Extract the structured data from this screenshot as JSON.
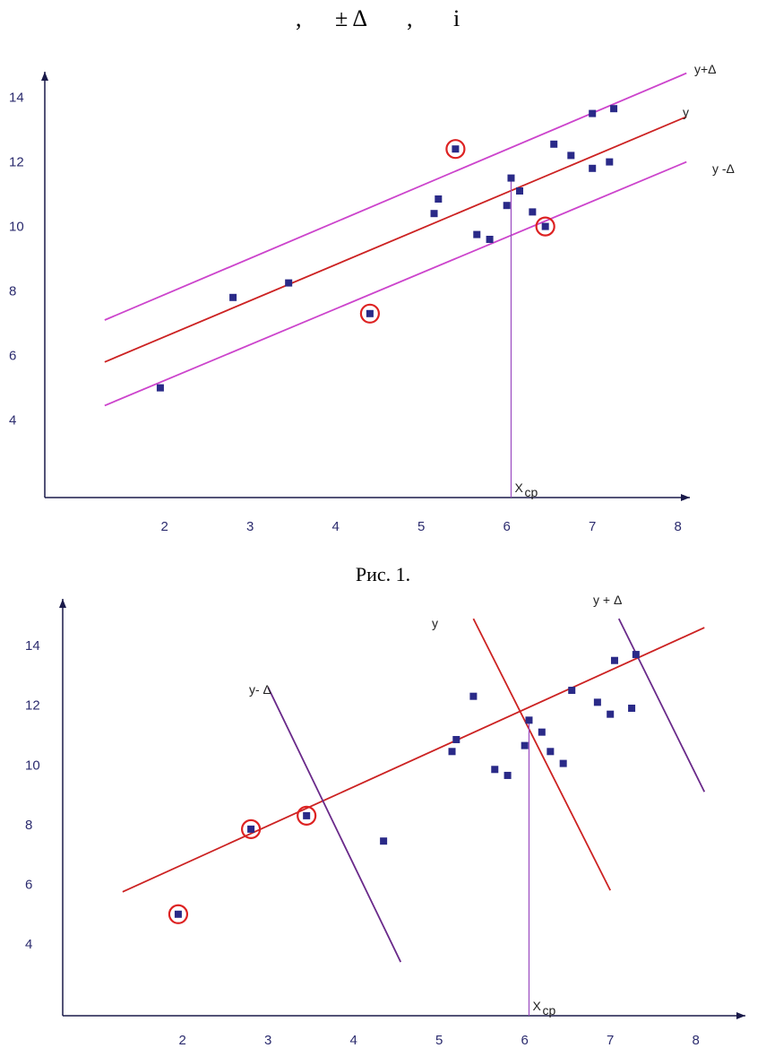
{
  "header": {
    "frag_comma": ",",
    "frag_pm_delta": "± Δ",
    "frag_comma2": ",",
    "frag_i": "і"
  },
  "caption": "Рис. 1.",
  "chart_data": [
    {
      "type": "scatter",
      "title": "",
      "x_ticks": [
        "2",
        "3",
        "4",
        "5",
        "6",
        "7",
        "8"
      ],
      "y_ticks": [
        "4",
        "6",
        "8",
        "10",
        "12",
        "14"
      ],
      "xlim": [
        0.6,
        8.2
      ],
      "ylim": [
        1.6,
        15.2
      ],
      "points": [
        {
          "x": 1.95,
          "y": 5.0
        },
        {
          "x": 2.8,
          "y": 7.8
        },
        {
          "x": 3.45,
          "y": 8.25
        },
        {
          "x": 4.4,
          "y": 7.3,
          "circled": true
        },
        {
          "x": 5.15,
          "y": 10.4
        },
        {
          "x": 5.2,
          "y": 10.85
        },
        {
          "x": 5.4,
          "y": 12.4,
          "circled": true
        },
        {
          "x": 5.65,
          "y": 9.75
        },
        {
          "x": 5.8,
          "y": 9.6
        },
        {
          "x": 6.0,
          "y": 10.65
        },
        {
          "x": 6.05,
          "y": 11.5
        },
        {
          "x": 6.15,
          "y": 11.1
        },
        {
          "x": 6.3,
          "y": 10.45
        },
        {
          "x": 6.45,
          "y": 10.0,
          "circled": true
        },
        {
          "x": 6.55,
          "y": 12.55
        },
        {
          "x": 6.75,
          "y": 12.2
        },
        {
          "x": 7.0,
          "y": 11.8
        },
        {
          "x": 7.0,
          "y": 13.5
        },
        {
          "x": 7.2,
          "y": 12.0
        },
        {
          "x": 7.25,
          "y": 13.65
        }
      ],
      "lines": [
        {
          "name": "y+Δ",
          "color": "#cc44cc",
          "x": [
            1.3,
            8.1
          ],
          "y": [
            7.1,
            14.75
          ]
        },
        {
          "name": "y",
          "color": "#cc2222",
          "x": [
            1.3,
            8.1
          ],
          "y": [
            5.8,
            13.4
          ]
        },
        {
          "name": "y -Δ",
          "color": "#cc44cc",
          "x": [
            1.3,
            8.1
          ],
          "y": [
            4.45,
            12.0
          ]
        }
      ],
      "x_mean": 6.05,
      "x_mean_label": "X",
      "x_mean_sub": "ср"
    },
    {
      "type": "scatter",
      "title": "",
      "x_ticks": [
        "2",
        "3",
        "4",
        "5",
        "6",
        "7",
        "8"
      ],
      "y_ticks": [
        "4",
        "6",
        "8",
        "10",
        "12",
        "14"
      ],
      "xlim": [
        0.6,
        8.2
      ],
      "ylim": [
        1.6,
        15.2
      ],
      "points": [
        {
          "x": 1.95,
          "y": 5.0,
          "circled": true
        },
        {
          "x": 2.8,
          "y": 7.85,
          "circled": true
        },
        {
          "x": 3.45,
          "y": 8.3,
          "circled": true
        },
        {
          "x": 4.35,
          "y": 7.45
        },
        {
          "x": 5.15,
          "y": 10.45
        },
        {
          "x": 5.2,
          "y": 10.85
        },
        {
          "x": 5.4,
          "y": 12.3
        },
        {
          "x": 5.65,
          "y": 9.85
        },
        {
          "x": 5.8,
          "y": 9.65
        },
        {
          "x": 6.0,
          "y": 10.65
        },
        {
          "x": 6.05,
          "y": 11.5
        },
        {
          "x": 6.2,
          "y": 11.1
        },
        {
          "x": 6.3,
          "y": 10.45
        },
        {
          "x": 6.45,
          "y": 10.05
        },
        {
          "x": 6.55,
          "y": 12.5
        },
        {
          "x": 6.85,
          "y": 12.1
        },
        {
          "x": 7.0,
          "y": 11.7
        },
        {
          "x": 7.05,
          "y": 13.5
        },
        {
          "x": 7.25,
          "y": 11.9
        },
        {
          "x": 7.3,
          "y": 13.7
        }
      ],
      "lines": [
        {
          "name": "",
          "color": "#cc2222",
          "x": [
            1.3,
            8.1
          ],
          "y": [
            5.75,
            14.6
          ]
        },
        {
          "name": "y",
          "color": "#cc2222",
          "x": [
            5.4,
            7.0
          ],
          "y": [
            14.9,
            5.8
          ]
        },
        {
          "name": "y- Δ",
          "color": "#6a2a8a",
          "x": [
            3.0,
            4.55
          ],
          "y": [
            12.6,
            3.4
          ]
        },
        {
          "name": "y + Δ",
          "color": "#6a2a8a",
          "x": [
            7.1,
            8.1
          ],
          "y": [
            14.9,
            9.1
          ]
        }
      ],
      "x_mean": 6.05,
      "x_mean_label": "X",
      "x_mean_sub": "ср"
    }
  ]
}
